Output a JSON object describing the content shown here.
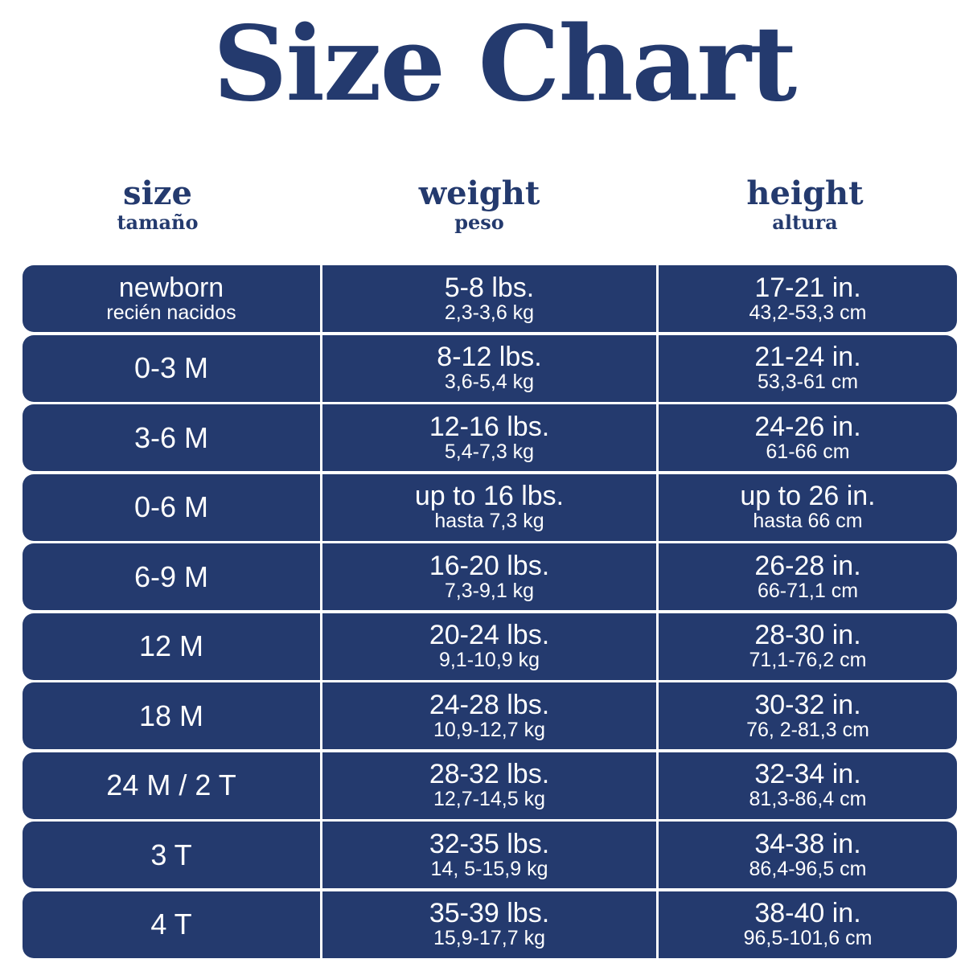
{
  "title": "Size Chart",
  "colors": {
    "navy": "#243a6e",
    "text": "#ffffff"
  },
  "headers": [
    {
      "main": "size",
      "sub": "tamaño"
    },
    {
      "main": "weight",
      "sub": "peso"
    },
    {
      "main": "height",
      "sub": "altura"
    }
  ],
  "rows": [
    {
      "size": "newborn",
      "size_sub": "recién nacidos",
      "weight": "5-8 lbs.",
      "weight_sub": "2,3-3,6 kg",
      "height": "17-21 in.",
      "height_sub": "43,2-53,3 cm"
    },
    {
      "size": "0-3 M",
      "weight": "8-12 lbs.",
      "weight_sub": "3,6-5,4 kg",
      "height": "21-24 in.",
      "height_sub": "53,3-61 cm"
    },
    {
      "size": "3-6 M",
      "weight": "12-16 lbs.",
      "weight_sub": "5,4-7,3 kg",
      "height": "24-26 in.",
      "height_sub": "61-66 cm"
    },
    {
      "size": "0-6 M",
      "weight": "up to 16 lbs.",
      "weight_sub": "hasta 7,3 kg",
      "height": "up to 26 in.",
      "height_sub": "hasta 66 cm"
    },
    {
      "size": "6-9 M",
      "weight": "16-20 lbs.",
      "weight_sub": "7,3-9,1 kg",
      "height": "26-28 in.",
      "height_sub": "66-71,1 cm"
    },
    {
      "size": "12 M",
      "weight": "20-24 lbs.",
      "weight_sub": "9,1-10,9 kg",
      "height": "28-30 in.",
      "height_sub": "71,1-76,2 cm"
    },
    {
      "size": "18 M",
      "weight": "24-28 lbs.",
      "weight_sub": "10,9-12,7 kg",
      "height": "30-32 in.",
      "height_sub": "76, 2-81,3 cm"
    },
    {
      "size": "24 M / 2 T",
      "weight": "28-32 lbs.",
      "weight_sub": "12,7-14,5 kg",
      "height": "32-34 in.",
      "height_sub": "81,3-86,4 cm"
    },
    {
      "size": "3 T",
      "weight": "32-35 lbs.",
      "weight_sub": "14, 5-15,9 kg",
      "height": "34-38 in.",
      "height_sub": "86,4-96,5 cm"
    },
    {
      "size": "4 T",
      "weight": "35-39 lbs.",
      "weight_sub": "15,9-17,7 kg",
      "height": "38-40 in.",
      "height_sub": "96,5-101,6 cm"
    }
  ]
}
